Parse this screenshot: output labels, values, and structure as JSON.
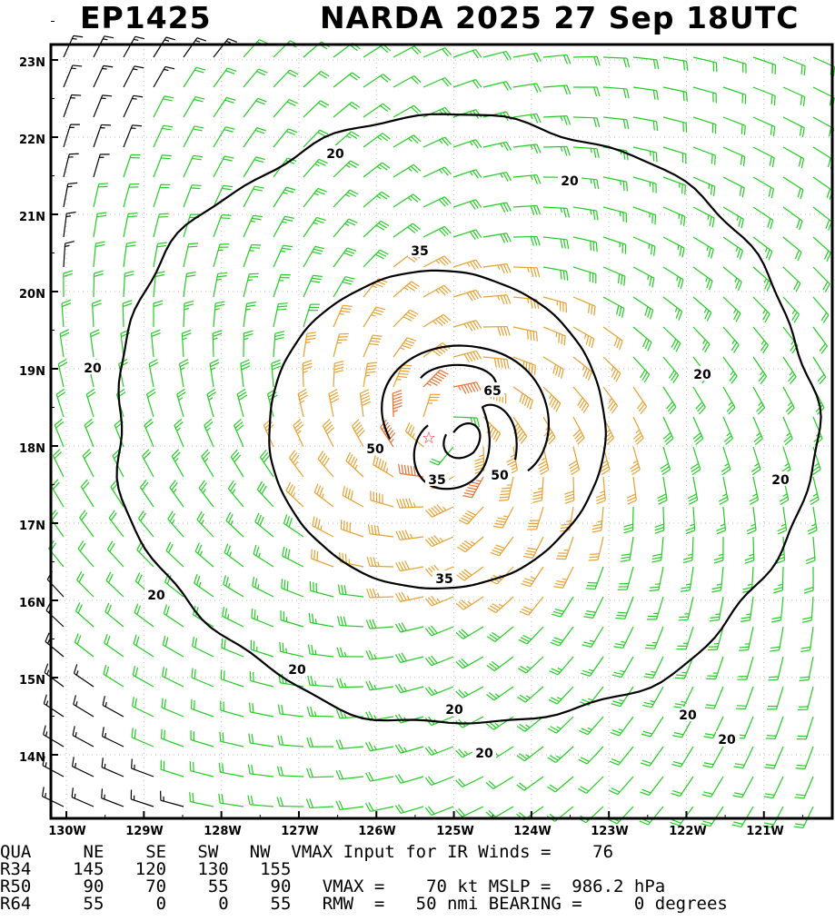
{
  "header": {
    "storm_id": "EP1425",
    "storm_info": "NARDA 2025 27 Sep 18UTC"
  },
  "map": {
    "lat_labels": [
      "23N",
      "22N",
      "21N",
      "20N",
      "19N",
      "18N",
      "17N",
      "16N",
      "15N",
      "14N"
    ],
    "lon_labels": [
      "130W",
      "129W",
      "128W",
      "127W",
      "126W",
      "125W",
      "124W",
      "123W",
      "122W",
      "121W"
    ],
    "contour_labels": [
      "20",
      "20",
      "20",
      "20",
      "20",
      "20",
      "20",
      "20",
      "35",
      "35",
      "35",
      "50",
      "50",
      "65"
    ],
    "center_lon": -125.1,
    "center_lat": 18.15,
    "colors": {
      "weak": "#000000",
      "gale": "#22cc22",
      "storm": "#e6a030",
      "hurricane": "#e87030",
      "center": "#ff3333"
    }
  },
  "table": {
    "header": [
      "QUA",
      "NE",
      "SE",
      "SW",
      "NW"
    ],
    "rows": [
      {
        "label": "R34",
        "values": [
          "145",
          "120",
          "130",
          "155"
        ]
      },
      {
        "label": "R50",
        "values": [
          "90",
          "70",
          "55",
          "90"
        ]
      },
      {
        "label": "R64",
        "values": [
          "55",
          "0",
          "0",
          "55"
        ]
      }
    ],
    "info": [
      "VMAX Input for IR Winds =    76",
      "",
      "VMAX =    70 kt MSLP =  986.2 hPa",
      "RMW  =   50 nmi BEARING =     0 degrees"
    ]
  }
}
